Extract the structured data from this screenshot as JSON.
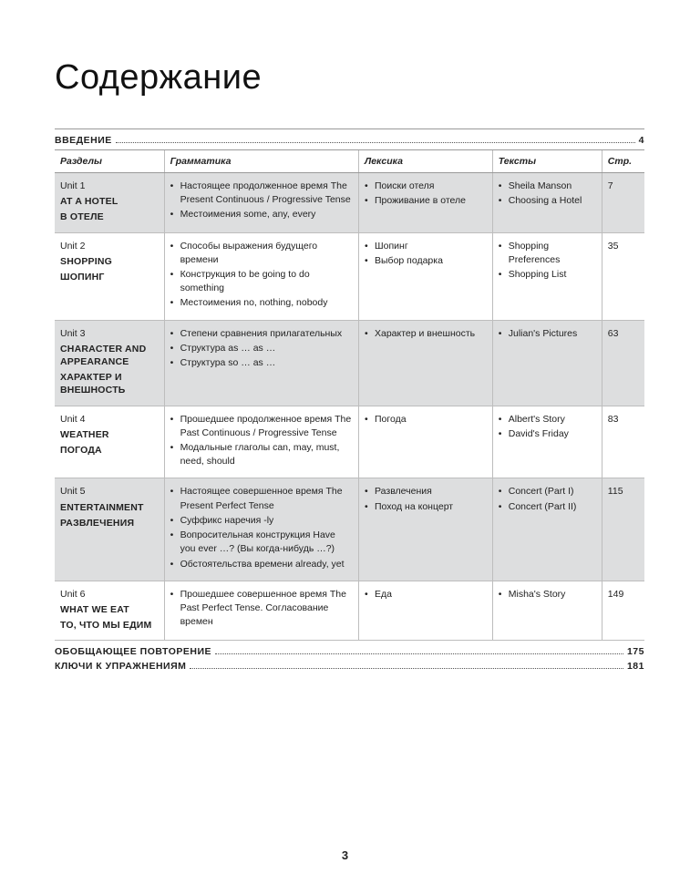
{
  "title": "Содержание",
  "intro": {
    "label": "ВВЕДЕНИЕ",
    "page": "4"
  },
  "headers": {
    "unit": "Разделы",
    "grammar": "Грамматика",
    "lexis": "Лексика",
    "texts": "Тексты",
    "page": "Стр."
  },
  "rows": [
    {
      "shaded": true,
      "unit_no": "Unit 1",
      "unit_titles": [
        "AT A HOTEL",
        "В ОТЕЛЕ"
      ],
      "grammar": [
        "Настоящее продолженное время The Present Continuous / Progressive Tense",
        "Местоимения some, any, every"
      ],
      "lexis": [
        "Поиски отеля",
        "Проживание в отеле"
      ],
      "texts": [
        "Sheila Manson",
        "Choosing a Hotel"
      ],
      "page": "7"
    },
    {
      "shaded": false,
      "unit_no": "Unit 2",
      "unit_titles": [
        "SHOPPING",
        "ШОПИНГ"
      ],
      "grammar": [
        "Способы выражения будущего времени",
        "Конструкция to be going to do something",
        "Местоимения no, nothing, nobody"
      ],
      "lexis": [
        "Шопинг",
        "Выбор подарка"
      ],
      "texts": [
        "Shopping Preferences",
        "Shopping List"
      ],
      "page": "35"
    },
    {
      "shaded": true,
      "unit_no": "Unit 3",
      "unit_titles": [
        "CHARACTER AND APPEARANCE",
        "ХАРАКТЕР И ВНЕШНОСТЬ"
      ],
      "grammar": [
        "Степени сравнения прилагательных",
        "Структура as … as …",
        "Структура so … as …"
      ],
      "lexis": [
        "Характер и внешность"
      ],
      "texts": [
        "Julian's Pictures"
      ],
      "page": "63"
    },
    {
      "shaded": false,
      "unit_no": "Unit 4",
      "unit_titles": [
        "WEATHER",
        "ПОГОДА"
      ],
      "grammar": [
        "Прошедшее продолженное время The Past Continuous / Progressive Tense",
        "Модальные глаголы can, may, must, need, should"
      ],
      "lexis": [
        "Погода"
      ],
      "texts": [
        "Albert's Story",
        "David's Friday"
      ],
      "page": "83"
    },
    {
      "shaded": true,
      "unit_no": "Unit 5",
      "unit_titles": [
        "ENTERTAINMENT",
        "РАЗВЛЕЧЕНИЯ"
      ],
      "grammar": [
        "Настоящее совершенное время The Present Perfect Tense",
        "Суффикс наречия -ly",
        "Вопросительная конструкция Have you ever …? (Вы когда-нибудь …?)",
        "Обстоятельства времени already, yet"
      ],
      "lexis": [
        "Развлечения",
        "Поход на концерт"
      ],
      "texts": [
        "Concert (Part I)",
        "Concert (Part II)"
      ],
      "page": "115"
    },
    {
      "shaded": false,
      "unit_no": "Unit 6",
      "unit_titles": [
        "WHAT WE EAT",
        "ТО, ЧТО МЫ ЕДИМ"
      ],
      "grammar": [
        "Прошедшее совершенное время The Past Perfect Tense. Согласование времен"
      ],
      "lexis": [
        "Еда"
      ],
      "texts": [
        "Misha's Story"
      ],
      "page": "149"
    }
  ],
  "footer_rows": [
    {
      "label": "ОБОБЩАЮЩЕЕ ПОВТОРЕНИЕ",
      "page": "175"
    },
    {
      "label": "КЛЮЧИ К УПРАЖНЕНИЯМ",
      "page": "181"
    }
  ],
  "page_number": "3",
  "colors": {
    "shaded_bg": "#dddedf",
    "rule": "#999999",
    "text": "#222222"
  }
}
